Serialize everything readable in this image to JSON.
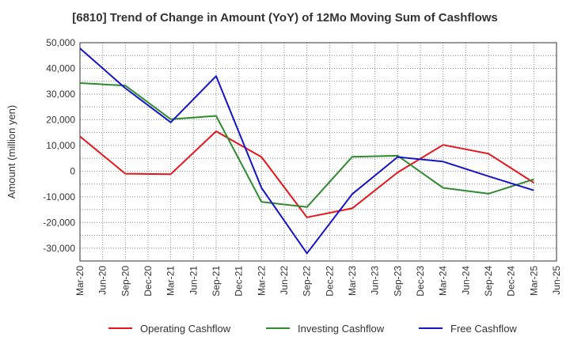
{
  "chart_data": {
    "type": "line",
    "title": "[6810]  Trend of Change in Amount (YoY) of 12Mo Moving Sum of Cashflows",
    "xlabel": "",
    "ylabel": "Amount (million yen)",
    "ylim": [
      -35000,
      50000
    ],
    "yticks": [
      50000,
      40000,
      30000,
      20000,
      10000,
      0,
      -10000,
      -20000,
      -30000
    ],
    "ytick_labels": [
      "50,000",
      "40,000",
      "30,000",
      "20,000",
      "10,000",
      "0",
      "-10,000",
      "-20,000",
      "-30,000"
    ],
    "categories": [
      "Mar-20",
      "Jun-20",
      "Sep-20",
      "Dec-20",
      "Mar-21",
      "Jun-21",
      "Sep-21",
      "Dec-21",
      "Mar-22",
      "Jun-22",
      "Sep-22",
      "Dec-22",
      "Mar-23",
      "Jun-23",
      "Sep-23",
      "Dec-23",
      "Mar-24",
      "Jun-24",
      "Sep-24",
      "Dec-24",
      "Mar-25",
      "Jun-25"
    ],
    "grid": true,
    "legend_position": "bottom",
    "series": [
      {
        "name": "Operating Cashflow",
        "color": "#e8141b",
        "values": [
          13500,
          null,
          -1000,
          null,
          -1200,
          null,
          15500,
          null,
          5500,
          null,
          -18000,
          null,
          -14500,
          null,
          -500,
          null,
          10200,
          null,
          6800,
          null,
          -4500,
          null
        ]
      },
      {
        "name": "Investing Cashflow",
        "color": "#2e8b2e",
        "values": [
          34300,
          null,
          33300,
          null,
          20200,
          null,
          21500,
          null,
          -12000,
          null,
          -14000,
          null,
          5600,
          null,
          6000,
          null,
          -6500,
          null,
          -8800,
          null,
          -3200,
          null
        ]
      },
      {
        "name": "Free Cashflow",
        "color": "#1414c8",
        "values": [
          47800,
          null,
          32300,
          null,
          19000,
          null,
          37000,
          null,
          -6500,
          null,
          -32000,
          null,
          -8900,
          null,
          5500,
          null,
          3700,
          null,
          -2000,
          null,
          -7500,
          null
        ]
      }
    ]
  }
}
